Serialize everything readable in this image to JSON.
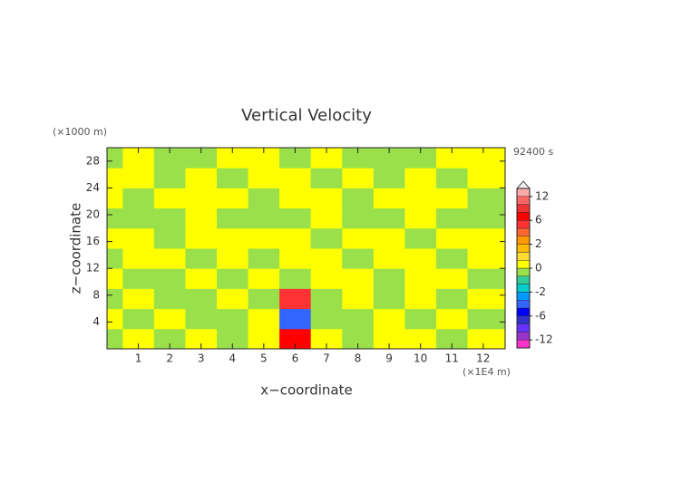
{
  "chart_data": {
    "type": "contour",
    "title": "Vertical Velocity",
    "x_label": "x−coordinate",
    "y_label": "z−coordinate",
    "x_unit": "(×1E4 m)",
    "y_unit": "(×1000 m)",
    "time_label": "92400 s",
    "xlim": [
      0,
      12.7
    ],
    "ylim": [
      0,
      30
    ],
    "xticks": [
      1,
      2,
      3,
      4,
      5,
      6,
      7,
      8,
      9,
      10,
      11,
      12
    ],
    "yticks": [
      4,
      8,
      12,
      16,
      20,
      24,
      28
    ],
    "x": [
      0,
      1,
      2,
      3,
      4,
      5,
      6,
      7,
      8,
      9,
      10,
      11,
      12
    ],
    "y": [
      1.5,
      4.5,
      7.5,
      10.5,
      13.5,
      16.5,
      19.5,
      22.5,
      25.5,
      28.5
    ],
    "z": [
      [
        -0.3,
        0.3,
        -0.3,
        0.3,
        -0.3,
        0.3,
        6,
        0.3,
        -0.3,
        0.3,
        0.3,
        -0.3,
        0.3
      ],
      [
        0.3,
        -0.3,
        0.3,
        -0.3,
        -0.3,
        0.3,
        -4,
        -0.3,
        -0.3,
        0.3,
        -0.3,
        0.3,
        -0.3
      ],
      [
        -0.3,
        0.3,
        -0.3,
        -0.3,
        0.3,
        -0.3,
        4,
        -0.3,
        0.3,
        -0.3,
        0.3,
        -0.3,
        0.3
      ],
      [
        0.3,
        -0.3,
        -0.3,
        0.3,
        -0.3,
        0.3,
        -0.3,
        0.3,
        0.3,
        -0.3,
        0.3,
        0.3,
        -0.3
      ],
      [
        -0.3,
        0.3,
        0.3,
        -0.3,
        0.3,
        -0.3,
        0.3,
        0.3,
        -0.3,
        0.3,
        0.3,
        -0.3,
        0.3
      ],
      [
        0.3,
        0.3,
        -0.3,
        0.3,
        0.3,
        0.3,
        0.3,
        -0.3,
        0.3,
        0.3,
        -0.3,
        0.3,
        0.3
      ],
      [
        -0.3,
        -0.3,
        -0.3,
        0.3,
        -0.3,
        -0.3,
        -0.3,
        0.3,
        -0.3,
        -0.3,
        0.3,
        -0.3,
        -0.3
      ],
      [
        0.3,
        -0.3,
        0.3,
        0.3,
        0.3,
        -0.3,
        0.3,
        0.3,
        -0.3,
        0.3,
        0.3,
        0.3,
        -0.3
      ],
      [
        0.3,
        0.3,
        -0.3,
        0.3,
        -0.3,
        0.3,
        0.3,
        -0.3,
        0.3,
        -0.3,
        0.3,
        -0.3,
        0.3
      ],
      [
        -0.3,
        0.3,
        -0.3,
        -0.3,
        0.3,
        0.3,
        -0.3,
        0.3,
        -0.3,
        -0.3,
        -0.3,
        0.3,
        0.3
      ]
    ],
    "levels": [
      -14,
      -12,
      -10,
      -8,
      -6,
      -4,
      -3,
      -2,
      -1,
      -0.5,
      0,
      0.5,
      1,
      2,
      3,
      4,
      6,
      8,
      10,
      12,
      14
    ],
    "colors": [
      "#ff33cc",
      "#9933cc",
      "#6633ff",
      "#3333cc",
      "#0000ff",
      "#3366ff",
      "#0099ff",
      "#00cccc",
      "#33cc99",
      "#99e04a",
      "#ffff00",
      "#ffdd33",
      "#ffbb00",
      "#ff9900",
      "#ff6633",
      "#ff3333",
      "#ff0000",
      "#ee3333",
      "#ff6666",
      "#ffaaaa"
    ],
    "colorbar_ticks": [
      12,
      6,
      2,
      0,
      -2,
      -6,
      -12
    ]
  }
}
